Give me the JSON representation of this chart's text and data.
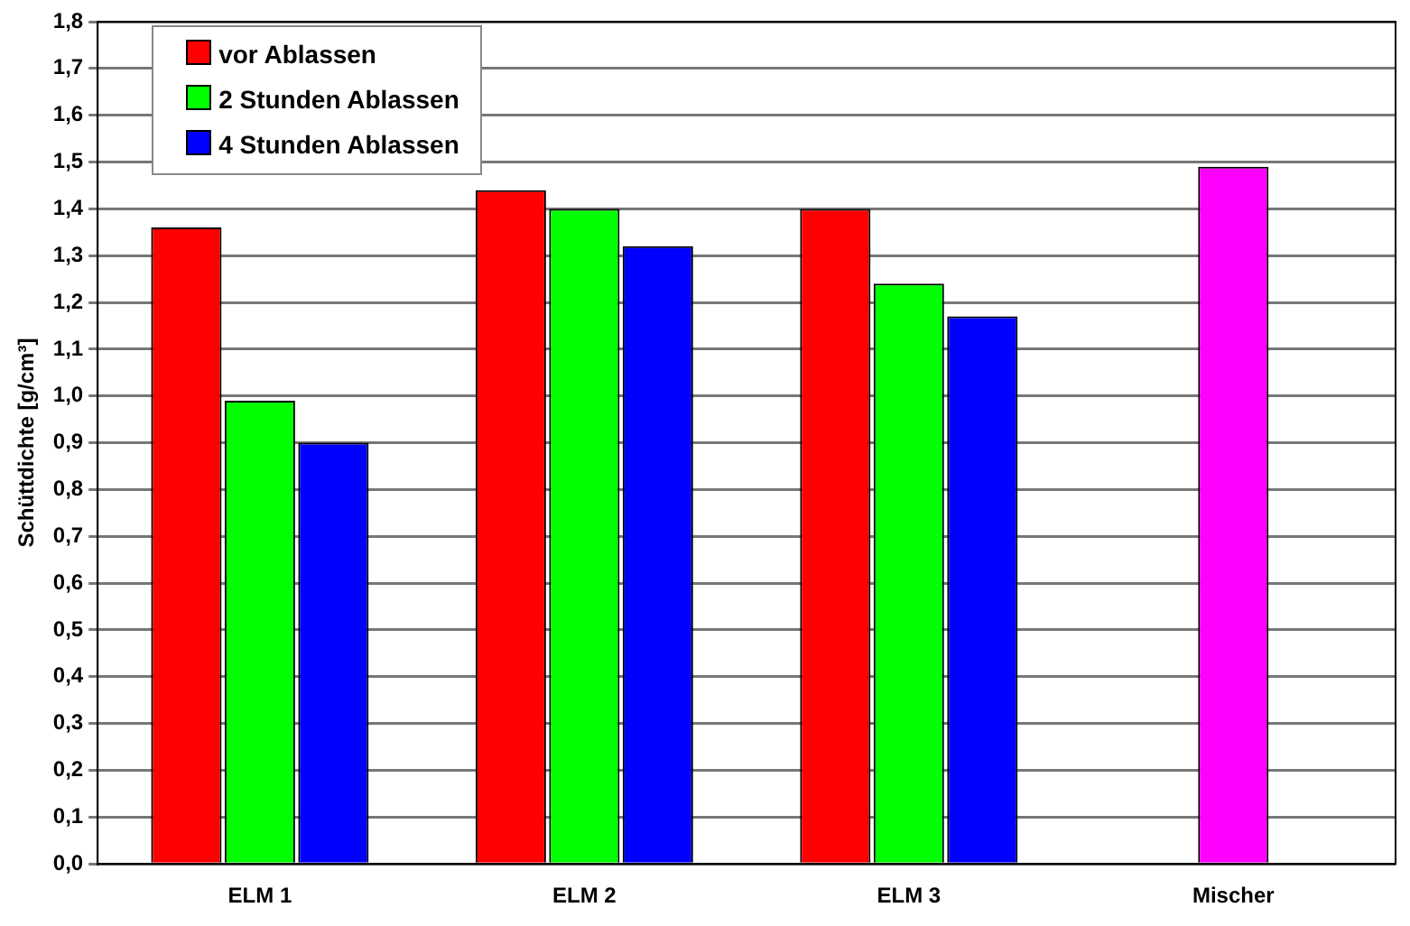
{
  "chart_data": {
    "type": "bar",
    "ylabel": "Schüttdichte [g/cm³]",
    "categories": [
      "ELM 1",
      "ELM 2",
      "ELM 3",
      "Mischer"
    ],
    "series": [
      {
        "name": "vor Ablassen",
        "color": "#ff0000",
        "values": [
          1.36,
          1.44,
          1.4,
          null
        ]
      },
      {
        "name": "2 Stunden Ablassen",
        "color": "#00ff00",
        "values": [
          0.99,
          1.4,
          1.24,
          null
        ]
      },
      {
        "name": "4 Stunden Ablassen",
        "color": "#0000ff",
        "values": [
          0.9,
          1.32,
          1.17,
          null
        ]
      },
      {
        "color": "#ff00ff",
        "values": [
          null,
          null,
          null,
          1.49
        ]
      }
    ],
    "ylim": [
      0,
      1.8
    ],
    "yticks": [
      {
        "value": 0,
        "label": "0,0"
      },
      {
        "value": 0.1,
        "label": "0,1"
      },
      {
        "value": 0.2,
        "label": "0,2"
      },
      {
        "value": 0.3,
        "label": "0,3"
      },
      {
        "value": 0.4,
        "label": "0,4"
      },
      {
        "value": 0.5,
        "label": "0,5"
      },
      {
        "value": 0.6,
        "label": "0,6"
      },
      {
        "value": 0.7,
        "label": "0,7"
      },
      {
        "value": 0.8,
        "label": "0,8"
      },
      {
        "value": 0.9,
        "label": "0,9"
      },
      {
        "value": 1.0,
        "label": "1,0"
      },
      {
        "value": 1.1,
        "label": "1,1"
      },
      {
        "value": 1.2,
        "label": "1,2"
      },
      {
        "value": 1.3,
        "label": "1,3"
      },
      {
        "value": 1.4,
        "label": "1,4"
      },
      {
        "value": 1.5,
        "label": "1,5"
      },
      {
        "value": 1.6,
        "label": "1,6"
      },
      {
        "value": 1.7,
        "label": "1,7"
      },
      {
        "value": 1.8,
        "label": "1,8"
      }
    ],
    "grid": "y",
    "legend": "top left"
  }
}
